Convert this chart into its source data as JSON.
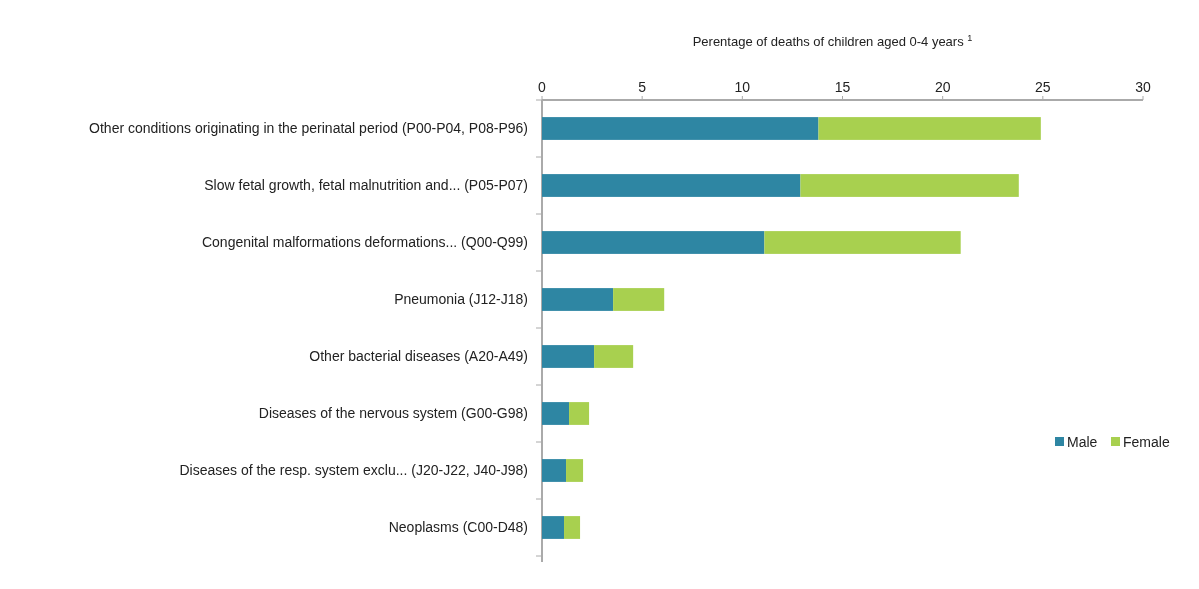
{
  "chart_data": {
    "type": "bar",
    "orientation": "horizontal",
    "stacked": true,
    "xlabel": "Perentage of deaths of children aged 0-4 years $^{1}$",
    "categories": [
      "Other conditions originating in the perinatal period (P00-P04, P08-P96)",
      "Slow fetal growth, fetal malnutrition and... (P05-P07)",
      "Congenital malformations deformations... (Q00-Q99)",
      "Pneumonia (J12-J18)",
      "Other bacterial diseases (A20-A49)",
      "Diseases of the nervous system (G00-G98)",
      "Diseases of the resp. system exclu... (J20-J22, J40-J98)",
      "Neoplasms (C00-D48)"
    ],
    "series": [
      {
        "name": "Male",
        "color": "#2e86a3",
        "values": [
          13.8,
          12.9,
          11.1,
          3.55,
          2.6,
          1.35,
          1.2,
          1.1
        ]
      },
      {
        "name": "Female",
        "color": "#a8d04f",
        "values": [
          11.1,
          10.9,
          9.8,
          2.55,
          1.95,
          1.0,
          0.85,
          0.8
        ]
      }
    ],
    "xlim": [
      0,
      30
    ],
    "xticks": [
      0,
      5,
      10,
      15,
      20,
      25,
      30
    ],
    "grid": false,
    "legend": "right"
  }
}
